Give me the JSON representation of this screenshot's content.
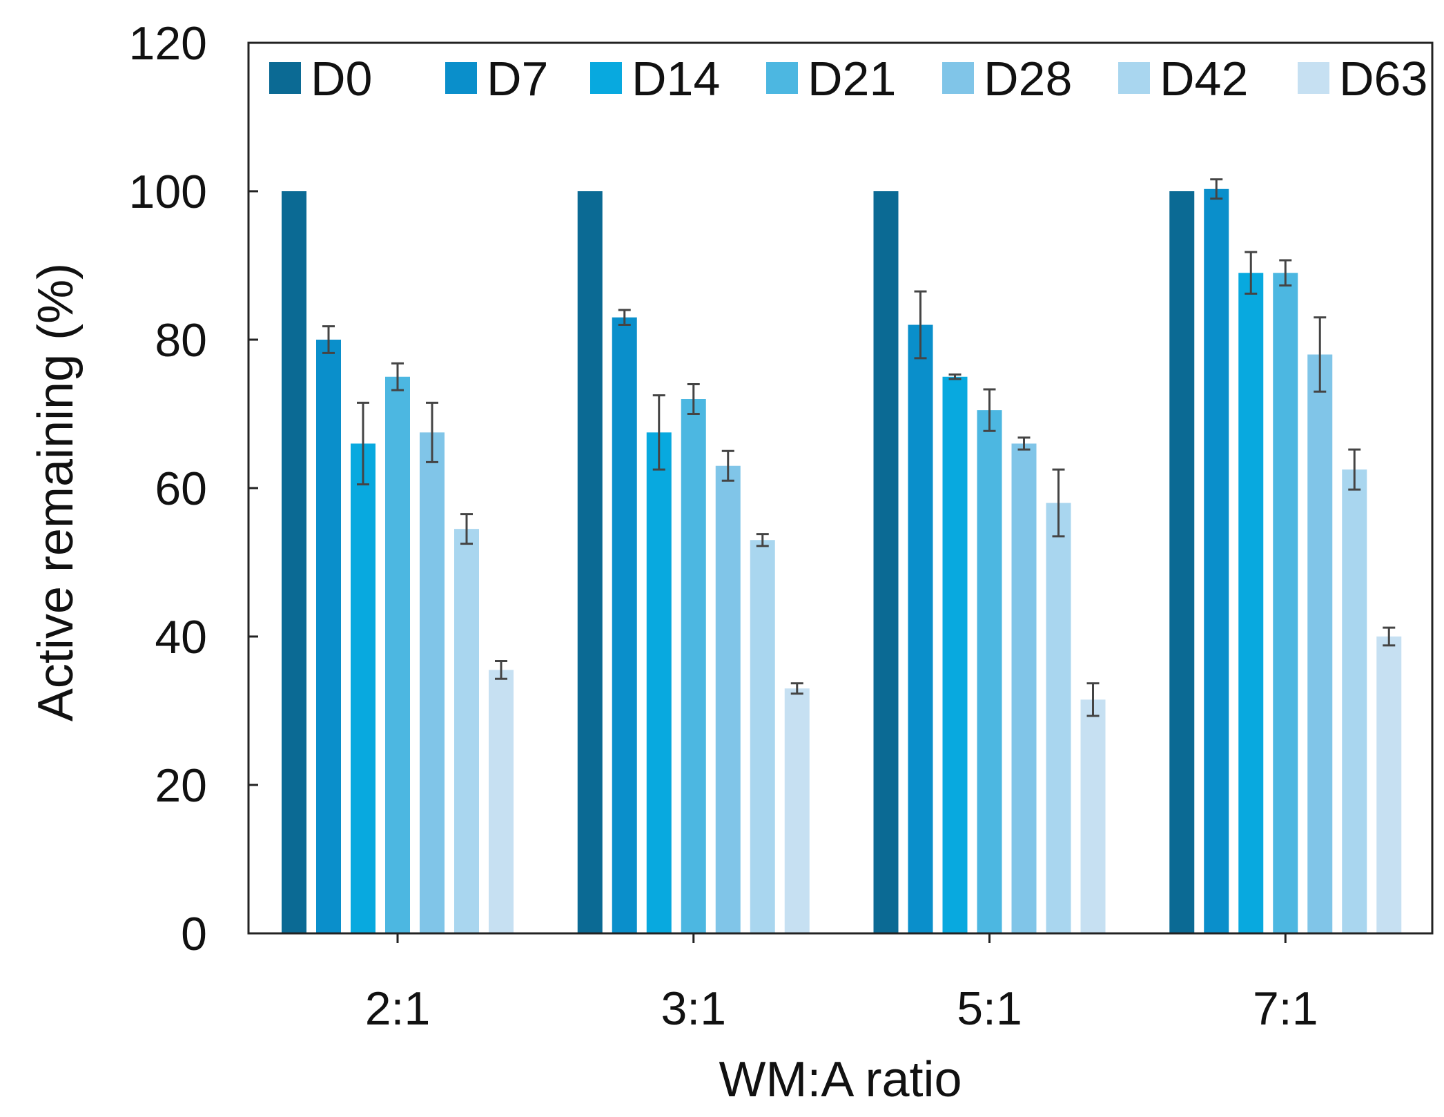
{
  "chart_data": {
    "type": "bar",
    "title": "",
    "xlabel": "WM:A ratio",
    "ylabel": "Active remaining (%)",
    "ylim": [
      0,
      120
    ],
    "yticks": [
      0,
      20,
      40,
      60,
      80,
      100,
      120
    ],
    "grid": false,
    "legend_position": "top",
    "categories": [
      "2:1",
      "3:1",
      "5:1",
      "7:1"
    ],
    "series": [
      {
        "name": "D0",
        "color": "#0b6a94",
        "values": [
          100,
          100,
          100,
          100
        ],
        "errors": [
          0,
          0,
          0,
          0
        ]
      },
      {
        "name": "D7",
        "color": "#0a8fcb",
        "values": [
          80,
          83,
          82,
          100.3
        ],
        "errors": [
          1.8,
          1.0,
          4.5,
          1.3
        ]
      },
      {
        "name": "D14",
        "color": "#08a9df",
        "values": [
          66,
          67.5,
          75,
          89
        ],
        "errors": [
          5.5,
          5.0,
          0.3,
          2.8
        ]
      },
      {
        "name": "D21",
        "color": "#4cb7e1",
        "values": [
          75,
          72,
          70.5,
          89
        ],
        "errors": [
          1.8,
          2.0,
          2.8,
          1.7
        ]
      },
      {
        "name": "D28",
        "color": "#80c5e8",
        "values": [
          67.5,
          63,
          66,
          78
        ],
        "errors": [
          4.0,
          2.0,
          0.8,
          5.0
        ]
      },
      {
        "name": "D42",
        "color": "#a9d6ef",
        "values": [
          54.5,
          53,
          58,
          62.5
        ],
        "errors": [
          2.0,
          0.8,
          4.5,
          2.7
        ]
      },
      {
        "name": "D63",
        "color": "#c6e0f2",
        "values": [
          35.5,
          33,
          31.5,
          40
        ],
        "errors": [
          1.2,
          0.7,
          2.2,
          1.2
        ]
      }
    ]
  }
}
